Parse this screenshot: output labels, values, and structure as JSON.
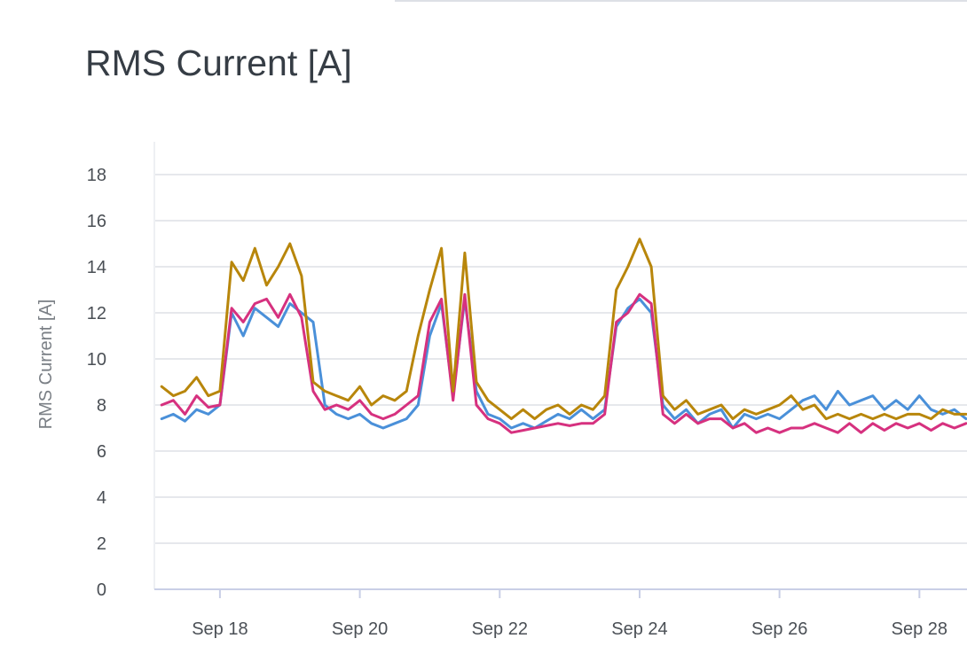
{
  "header": {
    "title": "RMS Current [A]"
  },
  "chart_data": {
    "type": "line",
    "title": "RMS Current [A]",
    "xlabel": "",
    "ylabel": "RMS Current [A]",
    "ylim": [
      0,
      18.5
    ],
    "yticks": [
      0,
      2,
      4,
      6,
      8,
      10,
      12,
      14,
      16,
      18
    ],
    "xlim": [
      "Sep 17 01:30",
      "Sep 28 16:20"
    ],
    "xticks": [
      "Sep 18",
      "Sep 20",
      "Sep 22",
      "Sep 24",
      "Sep 26",
      "Sep 28"
    ],
    "grid": true,
    "colors": [
      "#4a90d9",
      "#d6317f",
      "#b8860b"
    ],
    "x": [
      "Sep 17 04:00",
      "Sep 17 08:00",
      "Sep 17 12:00",
      "Sep 17 16:00",
      "Sep 17 20:00",
      "Sep 18 00:00",
      "Sep 18 04:00",
      "Sep 18 08:00",
      "Sep 18 12:00",
      "Sep 18 16:00",
      "Sep 18 20:00",
      "Sep 19 00:00",
      "Sep 19 04:00",
      "Sep 19 08:00",
      "Sep 19 12:00",
      "Sep 19 16:00",
      "Sep 19 20:00",
      "Sep 20 00:00",
      "Sep 20 04:00",
      "Sep 20 08:00",
      "Sep 20 12:00",
      "Sep 20 16:00",
      "Sep 20 20:00",
      "Sep 21 00:00",
      "Sep 21 04:00",
      "Sep 21 08:00",
      "Sep 21 12:00",
      "Sep 21 16:00",
      "Sep 21 20:00",
      "Sep 22 00:00",
      "Sep 22 04:00",
      "Sep 22 08:00",
      "Sep 22 12:00",
      "Sep 22 16:00",
      "Sep 22 20:00",
      "Sep 23 00:00",
      "Sep 23 04:00",
      "Sep 23 08:00",
      "Sep 23 12:00",
      "Sep 23 16:00",
      "Sep 23 20:00",
      "Sep 24 00:00",
      "Sep 24 04:00",
      "Sep 24 08:00",
      "Sep 24 12:00",
      "Sep 24 16:00",
      "Sep 24 20:00",
      "Sep 25 00:00",
      "Sep 25 04:00",
      "Sep 25 08:00",
      "Sep 25 12:00",
      "Sep 25 16:00",
      "Sep 25 20:00",
      "Sep 26 00:00",
      "Sep 26 04:00",
      "Sep 26 08:00",
      "Sep 26 12:00",
      "Sep 26 16:00",
      "Sep 26 20:00",
      "Sep 27 00:00",
      "Sep 27 04:00",
      "Sep 27 08:00",
      "Sep 27 12:00",
      "Sep 27 16:00",
      "Sep 27 20:00",
      "Sep 28 00:00",
      "Sep 28 04:00",
      "Sep 28 08:00",
      "Sep 28 12:00",
      "Sep 28 16:00"
    ],
    "series": [
      {
        "values": [
          7.4,
          7.6,
          7.3,
          7.8,
          7.6,
          8.0,
          12.0,
          11.0,
          12.2,
          11.8,
          11.4,
          12.4,
          12.0,
          11.6,
          8.0,
          7.6,
          7.4,
          7.6,
          7.2,
          7.0,
          7.2,
          7.4,
          8.0,
          11.0,
          12.4,
          8.4,
          12.6,
          8.6,
          7.6,
          7.4,
          7.0,
          7.2,
          7.0,
          7.3,
          7.6,
          7.4,
          7.8,
          7.4,
          7.8,
          11.4,
          12.2,
          12.6,
          12.0,
          8.0,
          7.4,
          7.8,
          7.2,
          7.6,
          7.8,
          7.0,
          7.6,
          7.4,
          7.6,
          7.4,
          7.8,
          8.2,
          8.4,
          7.8,
          8.6,
          8.0,
          8.2,
          8.4,
          7.8,
          8.2,
          7.8,
          8.4,
          7.8,
          7.6,
          7.8,
          7.4
        ]
      },
      {
        "values": [
          8.0,
          8.2,
          7.6,
          8.4,
          7.9,
          8.0,
          12.2,
          11.6,
          12.4,
          12.6,
          11.8,
          12.8,
          11.8,
          8.6,
          7.8,
          8.0,
          7.8,
          8.2,
          7.6,
          7.4,
          7.6,
          8.0,
          8.4,
          11.6,
          12.6,
          8.2,
          12.8,
          8.0,
          7.4,
          7.2,
          6.8,
          6.9,
          7.0,
          7.1,
          7.2,
          7.1,
          7.2,
          7.2,
          7.6,
          11.6,
          12.0,
          12.8,
          12.4,
          7.6,
          7.2,
          7.6,
          7.2,
          7.4,
          7.4,
          7.0,
          7.2,
          6.8,
          7.0,
          6.8,
          7.0,
          7.0,
          7.2,
          7.0,
          6.8,
          7.2,
          6.8,
          7.2,
          6.9,
          7.2,
          7.0,
          7.2,
          6.9,
          7.2,
          7.0,
          7.2
        ]
      },
      {
        "values": [
          8.8,
          8.4,
          8.6,
          9.2,
          8.4,
          8.6,
          14.2,
          13.4,
          14.8,
          13.2,
          14.0,
          15.0,
          13.6,
          9.0,
          8.6,
          8.4,
          8.2,
          8.8,
          8.0,
          8.4,
          8.2,
          8.6,
          11.0,
          13.0,
          14.8,
          8.6,
          14.6,
          9.0,
          8.2,
          7.8,
          7.4,
          7.8,
          7.4,
          7.8,
          8.0,
          7.6,
          8.0,
          7.8,
          8.4,
          13.0,
          14.0,
          15.2,
          14.0,
          8.4,
          7.8,
          8.2,
          7.6,
          7.8,
          8.0,
          7.4,
          7.8,
          7.6,
          7.8,
          8.0,
          8.4,
          7.8,
          8.0,
          7.4,
          7.6,
          7.4,
          7.6,
          7.4,
          7.6,
          7.4,
          7.6,
          7.6,
          7.4,
          7.8,
          7.6,
          7.6
        ]
      }
    ]
  }
}
